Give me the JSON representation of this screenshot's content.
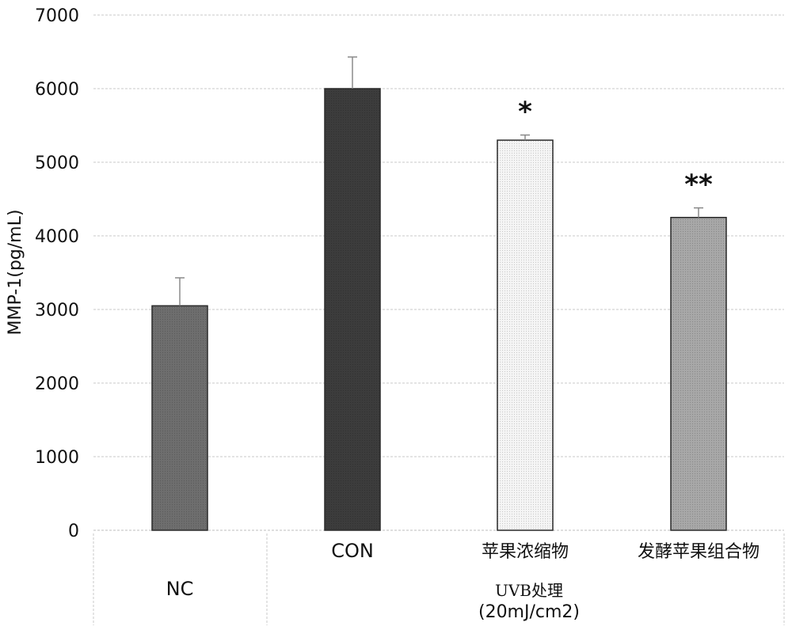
{
  "chart_data": {
    "type": "bar",
    "title": "",
    "xlabel": "",
    "ylabel": "MMP-1(pg/mL)",
    "ylim": [
      0,
      7000
    ],
    "yticks": [
      0,
      1000,
      2000,
      3000,
      4000,
      5000,
      6000,
      7000
    ],
    "grid": true,
    "categories": [
      "NC",
      "CON",
      "苹果浓缩物",
      "发酵苹果组合物"
    ],
    "values": [
      3050,
      6000,
      5300,
      4250
    ],
    "errors": [
      380,
      430,
      70,
      130
    ],
    "significance": [
      "",
      "",
      "*",
      "**"
    ],
    "bar_colors": [
      "#6e6e6e",
      "#3c3c3c",
      "#f5f5f5",
      "#a8a8a8"
    ],
    "group_label": "UVB处理",
    "group_sublabel": "(20mJ/cm2)"
  }
}
